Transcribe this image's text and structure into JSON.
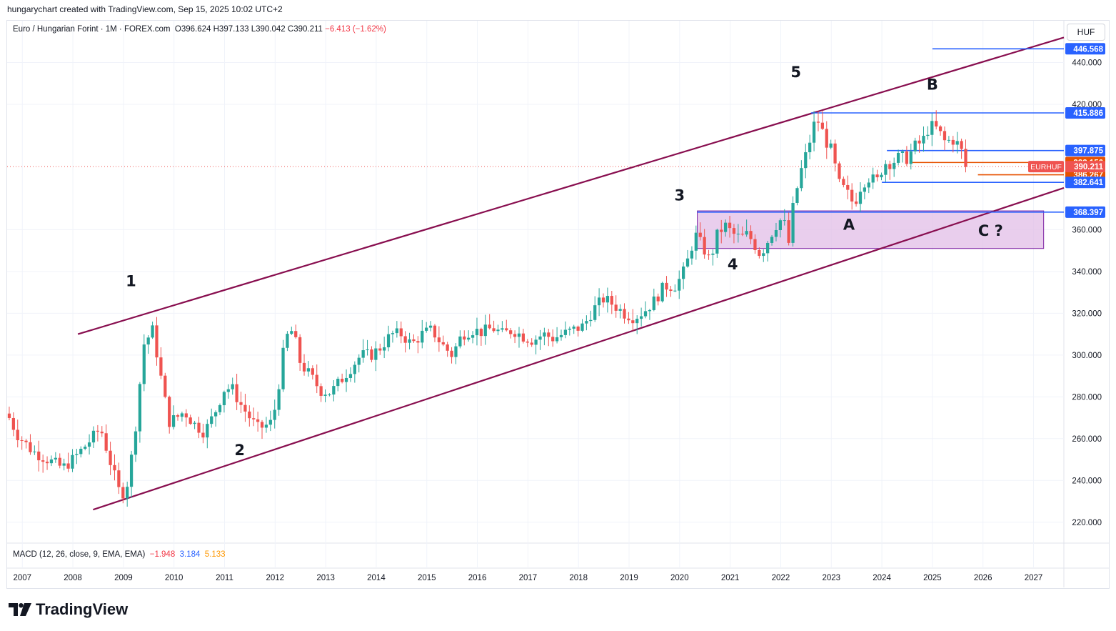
{
  "header": {
    "attribution": "hungarychart created with TradingView.com, Sep 15, 2025 10:02 UTC+2"
  },
  "legend": {
    "symbol": "Euro / Hungarian Forint · 1M · FOREX.com",
    "o_label": "O",
    "o": "396.624",
    "h_label": "H",
    "h": "397.133",
    "l_label": "L",
    "l": "390.042",
    "c_label": "C",
    "c": "390.211",
    "change": "−6.413 (−1.62%)"
  },
  "currency": "HUF",
  "macd": {
    "label": "MACD (12, 26, close, 9, EMA, EMA)",
    "hist": "−1.948",
    "macd": "3.184",
    "signal": "5.133"
  },
  "brand": "TradingView",
  "colors": {
    "up": "#26a69a",
    "down": "#ef5350",
    "channel": "#880e4f",
    "hline": "#2962ff",
    "orange": "#e65100",
    "zone": "#e1bee7",
    "zone_border": "#7b1fa2"
  },
  "chart_data": {
    "type": "candlestick",
    "interval": "1M",
    "symbol": "EURHUF",
    "x_ticks": [
      "2007",
      "2008",
      "2009",
      "2010",
      "2011",
      "2012",
      "2013",
      "2014",
      "2015",
      "2016",
      "2017",
      "2018",
      "2019",
      "2020",
      "2021",
      "2022",
      "2023",
      "2024",
      "2025",
      "2026",
      "2027"
    ],
    "y_ticks": [
      "220.000",
      "240.000",
      "260.000",
      "280.000",
      "300.000",
      "320.000",
      "340.000",
      "360.000",
      "420.000",
      "440.000"
    ],
    "ylim": [
      210,
      460
    ],
    "xlim": [
      2006.7,
      2027.6
    ],
    "anchors": [
      [
        2006.7,
        272
      ],
      [
        2006.9,
        262
      ],
      [
        2007.2,
        254
      ],
      [
        2007.5,
        250
      ],
      [
        2007.8,
        246
      ],
      [
        2008.0,
        250
      ],
      [
        2008.3,
        258
      ],
      [
        2008.55,
        265
      ],
      [
        2008.75,
        248
      ],
      [
        2008.95,
        232
      ],
      [
        2009.1,
        240
      ],
      [
        2009.25,
        268
      ],
      [
        2009.4,
        305
      ],
      [
        2009.58,
        312
      ],
      [
        2009.75,
        288
      ],
      [
        2009.9,
        268
      ],
      [
        2010.05,
        270
      ],
      [
        2010.2,
        273
      ],
      [
        2010.4,
        267
      ],
      [
        2010.6,
        263
      ],
      [
        2010.8,
        272
      ],
      [
        2011.0,
        284
      ],
      [
        2011.15,
        284
      ],
      [
        2011.3,
        277
      ],
      [
        2011.5,
        270
      ],
      [
        2011.65,
        265
      ],
      [
        2011.8,
        266
      ],
      [
        2011.95,
        268
      ],
      [
        2012.1,
        290
      ],
      [
        2012.2,
        308
      ],
      [
        2012.35,
        312
      ],
      [
        2012.5,
        296
      ],
      [
        2012.7,
        290
      ],
      [
        2012.9,
        283
      ],
      [
        2013.1,
        282
      ],
      [
        2013.3,
        288
      ],
      [
        2013.5,
        294
      ],
      [
        2013.7,
        300
      ],
      [
        2013.9,
        300
      ],
      [
        2014.1,
        304
      ],
      [
        2014.3,
        310
      ],
      [
        2014.5,
        310
      ],
      [
        2014.7,
        305
      ],
      [
        2014.9,
        310
      ],
      [
        2015.1,
        312
      ],
      [
        2015.3,
        305
      ],
      [
        2015.5,
        300
      ],
      [
        2015.7,
        310
      ],
      [
        2015.9,
        312
      ],
      [
        2016.1,
        311
      ],
      [
        2016.3,
        313
      ],
      [
        2016.5,
        310
      ],
      [
        2016.7,
        312
      ],
      [
        2016.9,
        309
      ],
      [
        2017.1,
        307
      ],
      [
        2017.3,
        310
      ],
      [
        2017.5,
        308
      ],
      [
        2017.7,
        310
      ],
      [
        2017.9,
        312
      ],
      [
        2018.1,
        314
      ],
      [
        2018.3,
        322
      ],
      [
        2018.5,
        327
      ],
      [
        2018.7,
        324
      ],
      [
        2018.9,
        320
      ],
      [
        2019.1,
        318
      ],
      [
        2019.3,
        321
      ],
      [
        2019.5,
        326
      ],
      [
        2019.7,
        333
      ],
      [
        2019.9,
        333
      ],
      [
        2020.05,
        338
      ],
      [
        2020.2,
        348
      ],
      [
        2020.3,
        358
      ],
      [
        2020.45,
        352
      ],
      [
        2020.6,
        345
      ],
      [
        2020.75,
        358
      ],
      [
        2020.9,
        362
      ],
      [
        2021.05,
        358
      ],
      [
        2021.2,
        356
      ],
      [
        2021.35,
        358
      ],
      [
        2021.5,
        352
      ],
      [
        2021.6,
        348
      ],
      [
        2021.75,
        355
      ],
      [
        2021.9,
        362
      ],
      [
        2022.05,
        366
      ],
      [
        2022.15,
        352
      ],
      [
        2022.25,
        372
      ],
      [
        2022.4,
        388
      ],
      [
        2022.55,
        400
      ],
      [
        2022.65,
        410
      ],
      [
        2022.75,
        412
      ],
      [
        2022.9,
        402
      ],
      [
        2023.0,
        398
      ],
      [
        2023.15,
        382
      ],
      [
        2023.3,
        378
      ],
      [
        2023.45,
        372
      ],
      [
        2023.6,
        382
      ],
      [
        2023.75,
        385
      ],
      [
        2023.9,
        383
      ],
      [
        2024.05,
        392
      ],
      [
        2024.2,
        392
      ],
      [
        2024.35,
        395
      ],
      [
        2024.5,
        394
      ],
      [
        2024.65,
        400
      ],
      [
        2024.8,
        402
      ],
      [
        2024.95,
        410
      ],
      [
        2025.1,
        408
      ],
      [
        2025.25,
        402
      ],
      [
        2025.4,
        403
      ],
      [
        2025.55,
        400
      ],
      [
        2025.65,
        390
      ]
    ],
    "channel": {
      "upper": [
        [
          2008.1,
          310
        ],
        [
          2027.6,
          452
        ]
      ],
      "lower": [
        [
          2008.4,
          226
        ],
        [
          2027.6,
          380
        ]
      ]
    },
    "zone": {
      "from": 2020.35,
      "to": 2027.2,
      "low": 351,
      "high": 369
    },
    "levels": [
      {
        "value": 446.568,
        "label": "446.568",
        "from": 2025.0,
        "to": 2027.6,
        "color": "#2962ff"
      },
      {
        "value": 415.886,
        "label": "415.886",
        "from": 2022.6,
        "to": 2027.6,
        "color": "#2962ff"
      },
      {
        "value": 397.875,
        "label": "397.875",
        "from": 2024.1,
        "to": 2027.6,
        "color": "#2962ff"
      },
      {
        "value": 392.156,
        "label": "392.156",
        "from": 2024.6,
        "to": 2027.6,
        "color": "#e65100"
      },
      {
        "value": 386.267,
        "label": "386.267",
        "from": 2025.9,
        "to": 2027.6,
        "color": "#e65100"
      },
      {
        "value": 382.641,
        "label": "382.641",
        "from": 2024.0,
        "to": 2027.6,
        "color": "#2962ff"
      },
      {
        "value": 368.397,
        "label": "368.397",
        "from": 2020.35,
        "to": 2027.6,
        "color": "#2962ff"
      }
    ],
    "last_price": {
      "value": 390.211,
      "label": "390.211",
      "symbol": "EURHUF"
    },
    "waves": [
      {
        "label": "1",
        "x": 2009.15,
        "y": 333
      },
      {
        "label": "2",
        "x": 2011.3,
        "y": 252
      },
      {
        "label": "3",
        "x": 2020.0,
        "y": 374
      },
      {
        "label": "4",
        "x": 2021.05,
        "y": 341
      },
      {
        "label": "5",
        "x": 2022.3,
        "y": 433
      },
      {
        "label": "A",
        "x": 2023.35,
        "y": 360
      },
      {
        "label": "B",
        "x": 2025.0,
        "y": 427
      },
      {
        "label": "C ?",
        "x": 2026.15,
        "y": 357
      }
    ]
  }
}
